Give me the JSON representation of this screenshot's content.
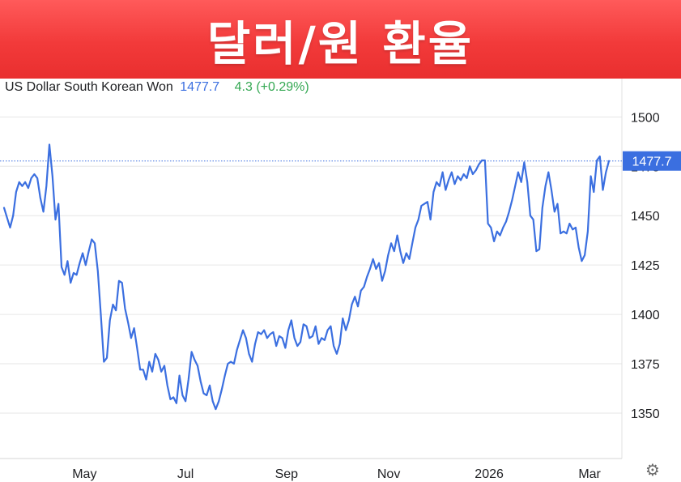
{
  "banner": {
    "title": "달러/원 환율"
  },
  "quote": {
    "name": "US Dollar South Korean Won",
    "price": "1477.7",
    "change": "4.3 (+0.29%)"
  },
  "colors": {
    "line": "#3b6fe0",
    "change": "#34a853",
    "banner": "#f23a3a",
    "grid": "#e6e6e6"
  },
  "settings": {
    "icon": "gear-icon"
  },
  "chart_data": {
    "type": "line",
    "title": "",
    "xlabel": "",
    "ylabel": "",
    "ylim": [
      1327,
      1510
    ],
    "y_ticks": [
      1500,
      1475,
      1450,
      1425,
      1400,
      1375,
      1350
    ],
    "x_ticks": [
      "May",
      "Jul",
      "Sep",
      "Nov",
      "2026",
      "Mar"
    ],
    "last_value_label": "1477.7",
    "last_value": 1477.7,
    "grid": true,
    "series": [
      {
        "points": [
          [
            0,
            1454
          ],
          [
            0.5,
            1449
          ],
          [
            1,
            1444
          ],
          [
            1.5,
            1450
          ],
          [
            2,
            1462
          ],
          [
            2.5,
            1467
          ],
          [
            3,
            1465
          ],
          [
            3.5,
            1467
          ],
          [
            4,
            1464
          ],
          [
            4.5,
            1469
          ],
          [
            5,
            1471
          ],
          [
            5.5,
            1469
          ],
          [
            6,
            1459
          ],
          [
            6.5,
            1452
          ],
          [
            7,
            1465
          ],
          [
            7.5,
            1486
          ],
          [
            8,
            1470
          ],
          [
            8.5,
            1448
          ],
          [
            9,
            1456
          ],
          [
            9.5,
            1424
          ],
          [
            10,
            1420
          ],
          [
            10.5,
            1427
          ],
          [
            11,
            1416
          ],
          [
            11.5,
            1421
          ],
          [
            12,
            1420
          ],
          [
            12.5,
            1426
          ],
          [
            13,
            1431
          ],
          [
            13.5,
            1425
          ],
          [
            14,
            1432
          ],
          [
            14.5,
            1438
          ],
          [
            15,
            1436
          ],
          [
            15.5,
            1422
          ],
          [
            16,
            1400
          ],
          [
            16.5,
            1376
          ],
          [
            17,
            1378
          ],
          [
            17.5,
            1397
          ],
          [
            18,
            1405
          ],
          [
            18.5,
            1402
          ],
          [
            19,
            1417
          ],
          [
            19.5,
            1416
          ],
          [
            20,
            1403
          ],
          [
            20.5,
            1396
          ],
          [
            21,
            1388
          ],
          [
            21.5,
            1393
          ],
          [
            22,
            1383
          ],
          [
            22.5,
            1372
          ],
          [
            23,
            1372
          ],
          [
            23.5,
            1367
          ],
          [
            24,
            1376
          ],
          [
            24.5,
            1371
          ],
          [
            25,
            1380
          ],
          [
            25.5,
            1377
          ],
          [
            26,
            1371
          ],
          [
            26.5,
            1374
          ],
          [
            27,
            1364
          ],
          [
            27.5,
            1357
          ],
          [
            28,
            1358
          ],
          [
            28.5,
            1355
          ],
          [
            29,
            1369
          ],
          [
            29.5,
            1359
          ],
          [
            30,
            1356
          ],
          [
            30.5,
            1367
          ],
          [
            31,
            1381
          ],
          [
            31.5,
            1377
          ],
          [
            32,
            1374
          ],
          [
            32.5,
            1366
          ],
          [
            33,
            1360
          ],
          [
            33.5,
            1359
          ],
          [
            34,
            1364
          ],
          [
            34.5,
            1356
          ],
          [
            35,
            1352
          ],
          [
            35.5,
            1356
          ],
          [
            36,
            1362
          ],
          [
            36.5,
            1369
          ],
          [
            37,
            1375
          ],
          [
            37.5,
            1376
          ],
          [
            38,
            1375
          ],
          [
            38.5,
            1382
          ],
          [
            39,
            1387
          ],
          [
            39.5,
            1392
          ],
          [
            40,
            1388
          ],
          [
            40.5,
            1380
          ],
          [
            41,
            1376
          ],
          [
            41.5,
            1385
          ],
          [
            42,
            1391
          ],
          [
            42.5,
            1390
          ],
          [
            43,
            1392
          ],
          [
            43.5,
            1388
          ],
          [
            44,
            1390
          ],
          [
            44.5,
            1391
          ],
          [
            45,
            1384
          ],
          [
            45.5,
            1389
          ],
          [
            46,
            1388
          ],
          [
            46.5,
            1383
          ],
          [
            47,
            1392
          ],
          [
            47.5,
            1397
          ],
          [
            48,
            1388
          ],
          [
            48.5,
            1384
          ],
          [
            49,
            1386
          ],
          [
            49.5,
            1395
          ],
          [
            50,
            1394
          ],
          [
            50.5,
            1388
          ],
          [
            51,
            1389
          ],
          [
            51.5,
            1394
          ],
          [
            52,
            1385
          ],
          [
            52.5,
            1388
          ],
          [
            53,
            1387
          ],
          [
            53.5,
            1392
          ],
          [
            54,
            1394
          ],
          [
            54.5,
            1384
          ],
          [
            55,
            1380
          ],
          [
            55.5,
            1385
          ],
          [
            56,
            1398
          ],
          [
            56.5,
            1392
          ],
          [
            57,
            1397
          ],
          [
            57.5,
            1405
          ],
          [
            58,
            1409
          ],
          [
            58.5,
            1404
          ],
          [
            59,
            1412
          ],
          [
            59.5,
            1414
          ],
          [
            60,
            1419
          ],
          [
            60.5,
            1423
          ],
          [
            61,
            1428
          ],
          [
            61.5,
            1423
          ],
          [
            62,
            1426
          ],
          [
            62.5,
            1417
          ],
          [
            63,
            1422
          ],
          [
            63.5,
            1430
          ],
          [
            64,
            1436
          ],
          [
            64.5,
            1432
          ],
          [
            65,
            1440
          ],
          [
            65.5,
            1432
          ],
          [
            66,
            1426
          ],
          [
            66.5,
            1431
          ],
          [
            67,
            1428
          ],
          [
            67.5,
            1436
          ],
          [
            68,
            1444
          ],
          [
            68.5,
            1448
          ],
          [
            69,
            1455
          ],
          [
            69.5,
            1456
          ],
          [
            70,
            1457
          ],
          [
            70.5,
            1448
          ],
          [
            71,
            1462
          ],
          [
            71.5,
            1467
          ],
          [
            72,
            1465
          ],
          [
            72.5,
            1472
          ],
          [
            73,
            1463
          ],
          [
            73.5,
            1468
          ],
          [
            74,
            1472
          ],
          [
            74.5,
            1466
          ],
          [
            75,
            1470
          ],
          [
            75.5,
            1468
          ],
          [
            76,
            1471
          ],
          [
            76.5,
            1469
          ],
          [
            77,
            1475
          ],
          [
            77.5,
            1471
          ],
          [
            78,
            1473
          ],
          [
            78.5,
            1476
          ],
          [
            79,
            1478
          ],
          [
            79.5,
            1478
          ],
          [
            80,
            1446
          ],
          [
            80.5,
            1444
          ],
          [
            81,
            1437
          ],
          [
            81.5,
            1442
          ],
          [
            82,
            1440
          ],
          [
            82.5,
            1444
          ],
          [
            83,
            1447
          ],
          [
            83.5,
            1452
          ],
          [
            84,
            1458
          ],
          [
            84.5,
            1465
          ],
          [
            85,
            1472
          ],
          [
            85.5,
            1467
          ],
          [
            86,
            1477
          ],
          [
            86.5,
            1467
          ],
          [
            87,
            1450
          ],
          [
            87.5,
            1448
          ],
          [
            88,
            1432
          ],
          [
            88.5,
            1433
          ],
          [
            89,
            1454
          ],
          [
            89.5,
            1465
          ],
          [
            90,
            1472
          ],
          [
            90.5,
            1463
          ],
          [
            91,
            1452
          ],
          [
            91.5,
            1456
          ],
          [
            92,
            1441
          ],
          [
            92.5,
            1442
          ],
          [
            93,
            1441
          ],
          [
            93.5,
            1446
          ],
          [
            94,
            1443
          ],
          [
            94.5,
            1444
          ],
          [
            95,
            1434
          ],
          [
            95.5,
            1427
          ],
          [
            96,
            1430
          ],
          [
            96.5,
            1442
          ],
          [
            97,
            1470
          ],
          [
            97.5,
            1462
          ],
          [
            98,
            1478
          ],
          [
            98.5,
            1480
          ],
          [
            99,
            1463
          ],
          [
            99.5,
            1472
          ],
          [
            100,
            1477.7
          ]
        ]
      }
    ]
  }
}
